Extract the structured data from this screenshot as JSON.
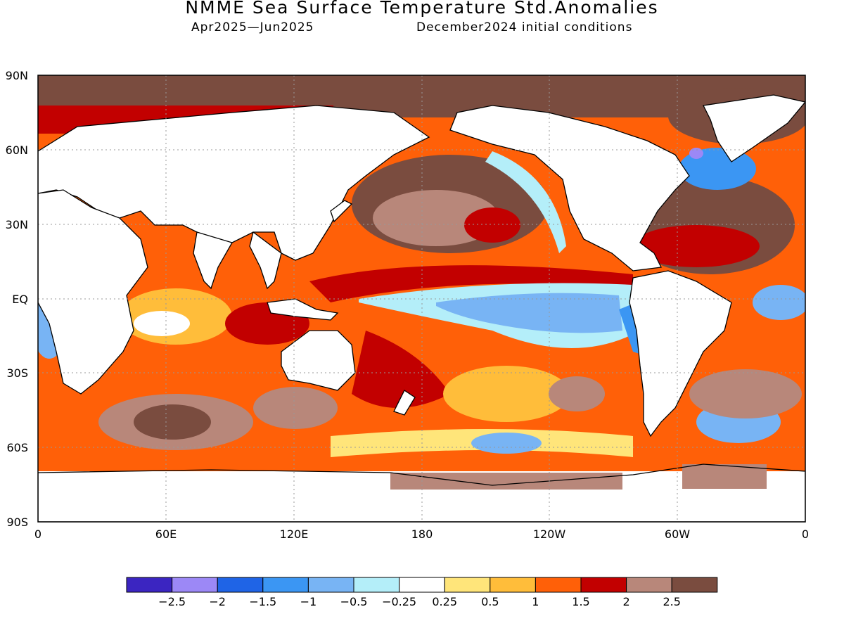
{
  "title": "NMME Sea Surface Temperature Std.Anomalies",
  "subtitle_left": "Apr2025—Jun2025",
  "subtitle_right": "December2024 initial conditions",
  "map": {
    "lat_labels": [
      "90N",
      "60N",
      "30N",
      "EQ",
      "30S",
      "60S",
      "90S"
    ],
    "lon_labels": [
      "0",
      "60E",
      "120E",
      "180",
      "120W",
      "60W",
      "0"
    ]
  },
  "colorbar": {
    "colors": [
      "#3b25c1",
      "#9c88f6",
      "#1f64e6",
      "#3b96f3",
      "#78b4f4",
      "#b4eef9",
      "#ffffff",
      "#ffe57a",
      "#ffbd3a",
      "#ff6008",
      "#c20000",
      "#b8877a",
      "#7a4c3f"
    ],
    "tick_labels": [
      "−2.5",
      "−2",
      "−1.5",
      "−1",
      "−0.5",
      "−0.25",
      "0.25",
      "0.5",
      "1",
      "1.5",
      "2",
      "2.5"
    ]
  }
}
